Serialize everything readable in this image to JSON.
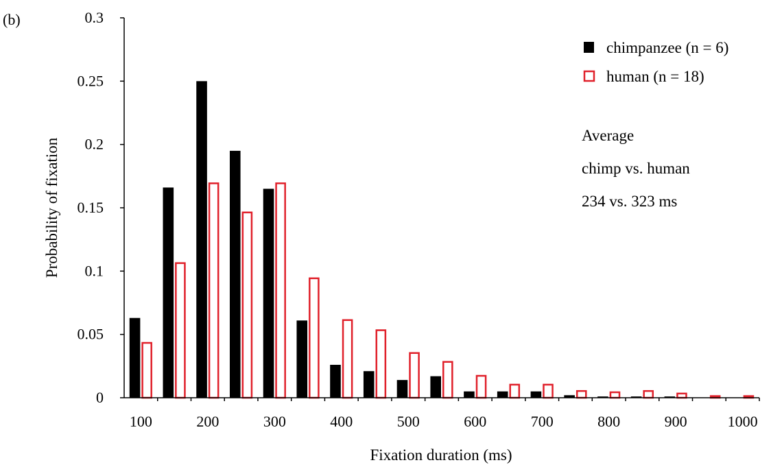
{
  "panel_label": "(b)",
  "chart_data": {
    "type": "bar",
    "title": "",
    "xlabel": "Fixation duration (ms)",
    "ylabel": "Probability of fixation",
    "ylim": [
      0,
      0.3
    ],
    "y_ticks": [
      "0",
      "0.05",
      "0.1",
      "0.15",
      "0.2",
      "0.25",
      "0.3"
    ],
    "x_tick_labels": [
      "100",
      "200",
      "300",
      "400",
      "500",
      "600",
      "700",
      "800",
      "900",
      "1000"
    ],
    "categories": [
      100,
      150,
      200,
      250,
      300,
      350,
      400,
      450,
      500,
      550,
      600,
      650,
      700,
      750,
      800,
      850,
      900,
      950,
      1000
    ],
    "series": [
      {
        "name": "chimpanzee (n = 6)",
        "color": "#000000",
        "style": "filled",
        "values": [
          0.063,
          0.166,
          0.25,
          0.195,
          0.165,
          0.061,
          0.026,
          0.021,
          0.014,
          0.017,
          0.005,
          0.005,
          0.005,
          0.002,
          0.001,
          0.001,
          0.001,
          0.0,
          0.0
        ]
      },
      {
        "name": "human (n = 18)",
        "color": "#e0202a",
        "style": "outline",
        "values": [
          0.044,
          0.107,
          0.17,
          0.147,
          0.17,
          0.095,
          0.062,
          0.054,
          0.036,
          0.029,
          0.018,
          0.011,
          0.011,
          0.006,
          0.005,
          0.006,
          0.004,
          0.002,
          0.002
        ]
      }
    ],
    "legend_position": "top-right",
    "annotation": [
      "Average",
      "chimp vs. human",
      "234 vs. 323 ms"
    ],
    "grid": false
  }
}
